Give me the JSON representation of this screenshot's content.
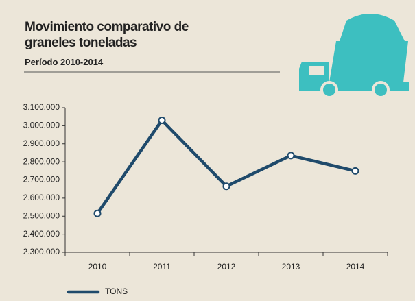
{
  "chart_data": {
    "type": "line",
    "title": "Movimiento comparativo de graneles toneladas",
    "subtitle": "Período 2010-2014",
    "categories": [
      "2010",
      "2011",
      "2012",
      "2013",
      "2014"
    ],
    "series": [
      {
        "name": "TONS",
        "color": "#1f4a6b",
        "values": [
          2515000,
          3030000,
          2665000,
          2835000,
          2750000
        ]
      }
    ],
    "ylim": [
      2300000,
      3100000
    ],
    "yticks": [
      {
        "value": 2300000,
        "label": "2.300.000"
      },
      {
        "value": 2400000,
        "label": "2.400.000"
      },
      {
        "value": 2500000,
        "label": "2.500.000"
      },
      {
        "value": 2600000,
        "label": "2.600.000"
      },
      {
        "value": 2700000,
        "label": "2.700.000"
      },
      {
        "value": 2800000,
        "label": "2.800.000"
      },
      {
        "value": 2900000,
        "label": "2.900.000"
      },
      {
        "value": 3000000,
        "label": "3.000.000"
      },
      {
        "value": 3100000,
        "label": "3.100.000"
      }
    ],
    "grid": false,
    "legend": "bottom-left"
  }
}
